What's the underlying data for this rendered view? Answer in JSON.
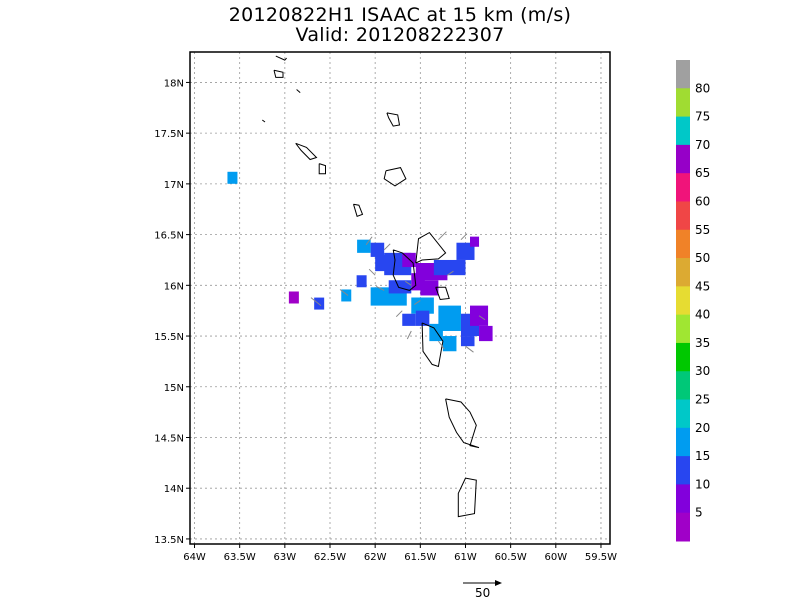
{
  "title": {
    "line1": "20120822H1 ISAAC at 15 km (m/s)",
    "line2": "Valid: 201208222307"
  },
  "map": {
    "lon_ticks": [
      "64W",
      "63.5W",
      "63W",
      "62.5W",
      "62W",
      "61.5W",
      "61W",
      "60.5W",
      "60W",
      "59.5W"
    ],
    "lat_ticks": [
      "18N",
      "17.5N",
      "17N",
      "16.5N",
      "16N",
      "15.5N",
      "15N",
      "14.5N",
      "14N",
      "13.5N"
    ],
    "lon_range": [
      -64.05,
      -59.4
    ],
    "lat_range": [
      13.45,
      18.3
    ],
    "grid": true
  },
  "colorbar": {
    "labels": [
      "80",
      "75",
      "70",
      "65",
      "60",
      "55",
      "50",
      "45",
      "40",
      "35",
      "30",
      "25",
      "20",
      "15",
      "10",
      "5"
    ],
    "colors": [
      "#a0a0a0",
      "#a0dc32",
      "#00c8c8",
      "#9600c8",
      "#f0147a",
      "#f04646",
      "#f08228",
      "#dcaa32",
      "#e6dc32",
      "#a0e632",
      "#00c800",
      "#00c878",
      "#00c8c8",
      "#009cf0",
      "#2846f0",
      "#8200dc",
      "#a000c8"
    ]
  },
  "reference_vector": {
    "label": "50"
  },
  "wind_cells": [
    {
      "lon": -63.58,
      "lat": 17.06,
      "c": "#009cf0"
    },
    {
      "lon": -62.9,
      "lat": 15.88,
      "c": "#a000c8"
    },
    {
      "lon": -62.62,
      "lat": 15.82,
      "c": "#2846f0"
    },
    {
      "lon": -62.32,
      "lat": 15.9,
      "c": "#009cf0"
    },
    {
      "lon": -62.15,
      "lat": 16.04,
      "c": "#2846f0"
    }
  ],
  "wind_blocks": [
    {
      "lon0": -62.2,
      "lon1": -62.05,
      "lat0": 16.32,
      "lat1": 16.45,
      "c": "#009cf0"
    },
    {
      "lon0": -62.05,
      "lon1": -61.9,
      "lat0": 16.28,
      "lat1": 16.42,
      "c": "#2846f0"
    },
    {
      "lon0": -62.0,
      "lon1": -61.85,
      "lat0": 16.14,
      "lat1": 16.3,
      "c": "#2846f0"
    },
    {
      "lon0": -61.9,
      "lon1": -61.6,
      "lat0": 16.1,
      "lat1": 16.32,
      "c": "#2846f0"
    },
    {
      "lon0": -61.7,
      "lon1": -61.55,
      "lat0": 16.18,
      "lat1": 16.32,
      "c": "#8200dc"
    },
    {
      "lon0": -61.55,
      "lon1": -61.2,
      "lat0": 16.05,
      "lat1": 16.22,
      "c": "#8200dc"
    },
    {
      "lon0": -61.35,
      "lon1": -61.0,
      "lat0": 16.1,
      "lat1": 16.25,
      "c": "#2846f0"
    },
    {
      "lon0": -61.1,
      "lon1": -60.9,
      "lat0": 16.25,
      "lat1": 16.42,
      "c": "#2846f0"
    },
    {
      "lon0": -60.95,
      "lon1": -60.85,
      "lat0": 16.38,
      "lat1": 16.48,
      "c": "#8200dc"
    },
    {
      "lon0": -61.5,
      "lon1": -61.3,
      "lat0": 15.9,
      "lat1": 16.05,
      "c": "#8200dc"
    },
    {
      "lon0": -61.6,
      "lon1": -61.45,
      "lat0": 15.95,
      "lat1": 16.12,
      "c": "#8200dc"
    },
    {
      "lon0": -62.05,
      "lon1": -61.65,
      "lat0": 15.8,
      "lat1": 15.98,
      "c": "#009cf0"
    },
    {
      "lon0": -61.85,
      "lon1": -61.6,
      "lat0": 15.92,
      "lat1": 16.05,
      "c": "#2846f0"
    },
    {
      "lon0": -61.6,
      "lon1": -61.35,
      "lat0": 15.72,
      "lat1": 15.88,
      "c": "#009cf0"
    },
    {
      "lon0": -61.55,
      "lon1": -61.4,
      "lat0": 15.6,
      "lat1": 15.75,
      "c": "#2846f0"
    },
    {
      "lon0": -61.4,
      "lon1": -61.25,
      "lat0": 15.45,
      "lat1": 15.62,
      "c": "#009cf0"
    },
    {
      "lon0": -61.3,
      "lon1": -61.05,
      "lat0": 15.55,
      "lat1": 15.8,
      "c": "#009cf0"
    },
    {
      "lon0": -61.25,
      "lon1": -61.1,
      "lat0": 15.35,
      "lat1": 15.5,
      "c": "#009cf0"
    },
    {
      "lon0": -61.05,
      "lon1": -60.85,
      "lat0": 15.5,
      "lat1": 15.72,
      "c": "#2846f0"
    },
    {
      "lon0": -60.95,
      "lon1": -60.75,
      "lat0": 15.6,
      "lat1": 15.8,
      "c": "#8200dc"
    },
    {
      "lon0": -60.85,
      "lon1": -60.7,
      "lat0": 15.45,
      "lat1": 15.6,
      "c": "#8200dc"
    },
    {
      "lon0": -61.05,
      "lon1": -60.9,
      "lat0": 15.4,
      "lat1": 15.5,
      "c": "#2846f0"
    },
    {
      "lon0": -61.7,
      "lon1": -61.55,
      "lat0": 15.6,
      "lat1": 15.72,
      "c": "#2846f0"
    }
  ],
  "islands": [
    {
      "name": "anguilla",
      "pts": [
        [
          -63.1,
          18.26
        ],
        [
          -63.0,
          18.22
        ],
        [
          -62.98,
          18.24
        ]
      ]
    },
    {
      "name": "st-martin",
      "pts": [
        [
          -63.12,
          18.12
        ],
        [
          -63.02,
          18.1
        ],
        [
          -63.02,
          18.05
        ],
        [
          -63.1,
          18.05
        ],
        [
          -63.12,
          18.12
        ]
      ]
    },
    {
      "name": "st-barths",
      "pts": [
        [
          -62.87,
          17.93
        ],
        [
          -62.83,
          17.9
        ]
      ]
    },
    {
      "name": "barbuda",
      "pts": [
        [
          -61.87,
          17.7
        ],
        [
          -61.75,
          17.68
        ],
        [
          -61.73,
          17.58
        ],
        [
          -61.8,
          17.57
        ],
        [
          -61.85,
          17.65
        ],
        [
          -61.87,
          17.7
        ]
      ]
    },
    {
      "name": "saba",
      "pts": [
        [
          -63.25,
          17.63
        ],
        [
          -63.22,
          17.61
        ]
      ]
    },
    {
      "name": "st-kitts",
      "pts": [
        [
          -62.88,
          17.4
        ],
        [
          -62.76,
          17.36
        ],
        [
          -62.65,
          17.26
        ],
        [
          -62.72,
          17.24
        ],
        [
          -62.82,
          17.33
        ],
        [
          -62.88,
          17.4
        ]
      ]
    },
    {
      "name": "nevis",
      "pts": [
        [
          -62.62,
          17.2
        ],
        [
          -62.55,
          17.18
        ],
        [
          -62.55,
          17.1
        ],
        [
          -62.62,
          17.1
        ],
        [
          -62.62,
          17.2
        ]
      ]
    },
    {
      "name": "antigua",
      "pts": [
        [
          -61.88,
          17.13
        ],
        [
          -61.72,
          17.16
        ],
        [
          -61.66,
          17.05
        ],
        [
          -61.78,
          16.98
        ],
        [
          -61.9,
          17.05
        ],
        [
          -61.88,
          17.13
        ]
      ]
    },
    {
      "name": "montserrat",
      "pts": [
        [
          -62.24,
          16.8
        ],
        [
          -62.18,
          16.79
        ],
        [
          -62.14,
          16.7
        ],
        [
          -62.2,
          16.68
        ],
        [
          -62.24,
          16.8
        ]
      ]
    },
    {
      "name": "guadeloupe",
      "pts": [
        [
          -61.8,
          16.35
        ],
        [
          -61.7,
          16.32
        ],
        [
          -61.58,
          16.22
        ],
        [
          -61.55,
          16.0
        ],
        [
          -61.62,
          15.95
        ],
        [
          -61.74,
          15.98
        ],
        [
          -61.8,
          16.1
        ],
        [
          -61.78,
          16.25
        ],
        [
          -61.8,
          16.35
        ]
      ]
    },
    {
      "name": "grande-terre",
      "pts": [
        [
          -61.55,
          16.22
        ],
        [
          -61.52,
          16.46
        ],
        [
          -61.4,
          16.52
        ],
        [
          -61.22,
          16.32
        ],
        [
          -61.3,
          16.26
        ],
        [
          -61.48,
          16.25
        ],
        [
          -61.55,
          16.22
        ]
      ]
    },
    {
      "name": "marie-galante",
      "pts": [
        [
          -61.33,
          15.98
        ],
        [
          -61.22,
          15.98
        ],
        [
          -61.18,
          15.87
        ],
        [
          -61.28,
          15.86
        ],
        [
          -61.33,
          15.98
        ]
      ]
    },
    {
      "name": "dominica",
      "pts": [
        [
          -61.48,
          15.63
        ],
        [
          -61.35,
          15.58
        ],
        [
          -61.25,
          15.45
        ],
        [
          -61.3,
          15.2
        ],
        [
          -61.37,
          15.22
        ],
        [
          -61.47,
          15.35
        ],
        [
          -61.48,
          15.63
        ]
      ]
    },
    {
      "name": "martinique",
      "pts": [
        [
          -61.22,
          14.88
        ],
        [
          -61.05,
          14.85
        ],
        [
          -60.95,
          14.75
        ],
        [
          -60.88,
          14.62
        ],
        [
          -60.95,
          14.42
        ],
        [
          -60.85,
          14.4
        ],
        [
          -61.02,
          14.45
        ],
        [
          -61.1,
          14.55
        ],
        [
          -61.18,
          14.7
        ],
        [
          -61.22,
          14.88
        ]
      ]
    },
    {
      "name": "st-lucia",
      "pts": [
        [
          -61.0,
          14.1
        ],
        [
          -60.88,
          14.08
        ],
        [
          -60.9,
          13.75
        ],
        [
          -61.08,
          13.72
        ],
        [
          -61.08,
          13.95
        ],
        [
          -61.0,
          14.1
        ]
      ]
    }
  ],
  "vectors": [
    {
      "lon": -62.6,
      "lat": 15.8,
      "u": -10,
      "v": 8
    },
    {
      "lon": -62.3,
      "lat": 15.9,
      "u": -8,
      "v": 6
    },
    {
      "lon": -61.9,
      "lat": 15.95,
      "u": -8,
      "v": 4
    },
    {
      "lon": -61.7,
      "lat": 15.75,
      "u": -6,
      "v": -6
    },
    {
      "lon": -61.6,
      "lat": 15.55,
      "u": -4,
      "v": -8
    },
    {
      "lon": -61.3,
      "lat": 15.45,
      "u": 6,
      "v": -8
    },
    {
      "lon": -61.0,
      "lat": 15.4,
      "u": 8,
      "v": -6
    },
    {
      "lon": -62.1,
      "lat": 16.4,
      "u": 6,
      "v": 8
    },
    {
      "lon": -61.9,
      "lat": 16.35,
      "u": 6,
      "v": 6
    },
    {
      "lon": -61.3,
      "lat": 16.45,
      "u": 8,
      "v": 8
    },
    {
      "lon": -61.05,
      "lat": 16.45,
      "u": 6,
      "v": 6
    },
    {
      "lon": -62.0,
      "lat": 16.1,
      "u": -6,
      "v": 6
    },
    {
      "lon": -61.6,
      "lat": 16.0,
      "u": -6,
      "v": 4
    },
    {
      "lon": -61.2,
      "lat": 16.1,
      "u": 6,
      "v": 4
    },
    {
      "lon": -60.85,
      "lat": 15.7,
      "u": 6,
      "v": -4
    },
    {
      "lon": -61.5,
      "lat": 15.85,
      "u": -6,
      "v": -4
    }
  ]
}
